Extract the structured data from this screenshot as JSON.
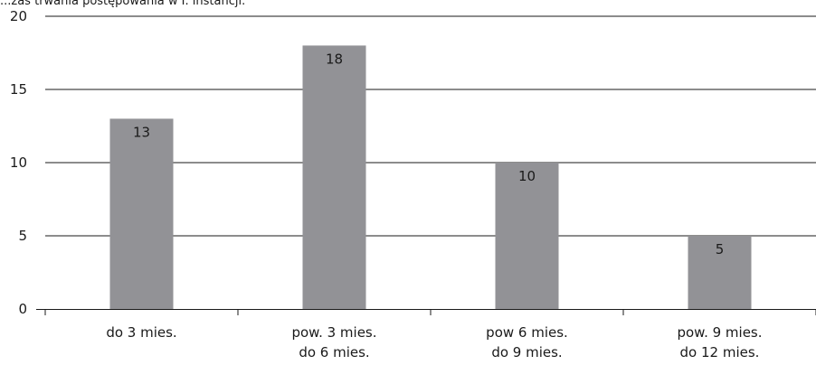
{
  "chart_data": {
    "type": "bar",
    "title": "...zas trwania postępowania w I. instancji.",
    "categories": [
      [
        "do 3 mies."
      ],
      [
        "pow. 3 mies.",
        "do 6 mies."
      ],
      [
        "pow 6 mies.",
        "do 9 mies."
      ],
      [
        "pow. 9 mies.",
        "do 12 mies."
      ]
    ],
    "values": [
      13,
      18,
      10,
      5
    ],
    "ylim": [
      0,
      20
    ],
    "yticks": [
      0,
      5,
      10,
      15,
      20
    ],
    "grid": true,
    "bar_color": "#929296",
    "grid_color": "#1a1a1a"
  }
}
